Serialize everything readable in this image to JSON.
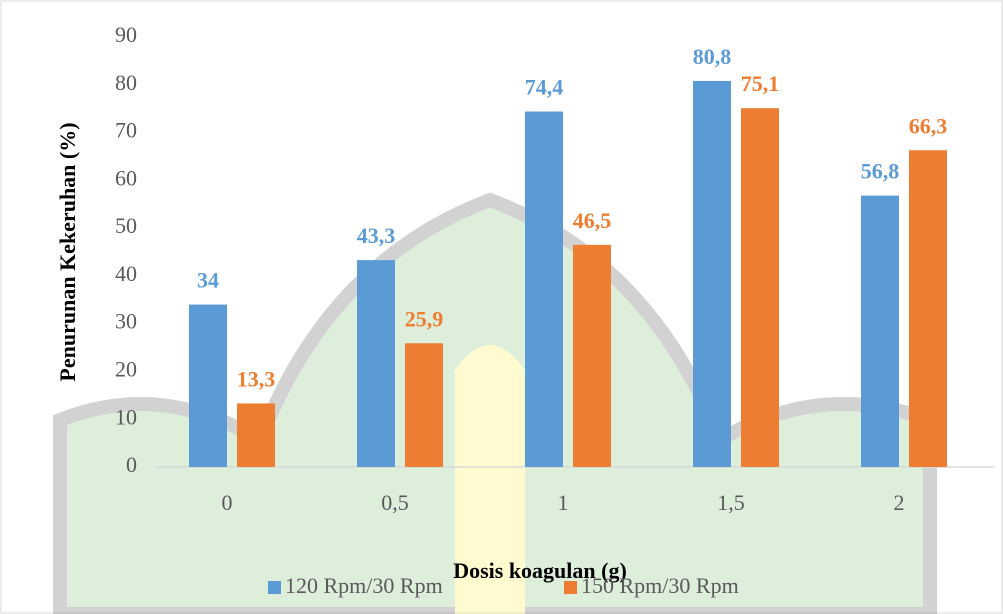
{
  "chart_data": {
    "type": "bar",
    "x_label": "Dosis koagulan (g)",
    "y_label": "Penurunan Kekeruhan (%)",
    "categories": [
      "0",
      "0,5",
      "1",
      "1,5",
      "2"
    ],
    "series": [
      {
        "name": "120 Rpm/30 Rpm",
        "color": "#5b9bd5",
        "values": [
          34,
          43.3,
          74.4,
          80.8,
          56.8
        ],
        "value_labels": [
          "34",
          "43,3",
          "74,4",
          "80,8",
          "56,8"
        ]
      },
      {
        "name": "150 Rpm/30 Rpm",
        "color": "#ed7d31",
        "values": [
          13.3,
          25.9,
          46.5,
          75.1,
          66.3
        ],
        "value_labels": [
          "13,3",
          "25,9",
          "46,5",
          "75,1",
          "66,3"
        ]
      }
    ],
    "ylim": [
      0,
      90
    ],
    "yticks": [
      0,
      10,
      20,
      30,
      40,
      50,
      60,
      70,
      80,
      90
    ],
    "grid": false,
    "legend": "bottom"
  }
}
